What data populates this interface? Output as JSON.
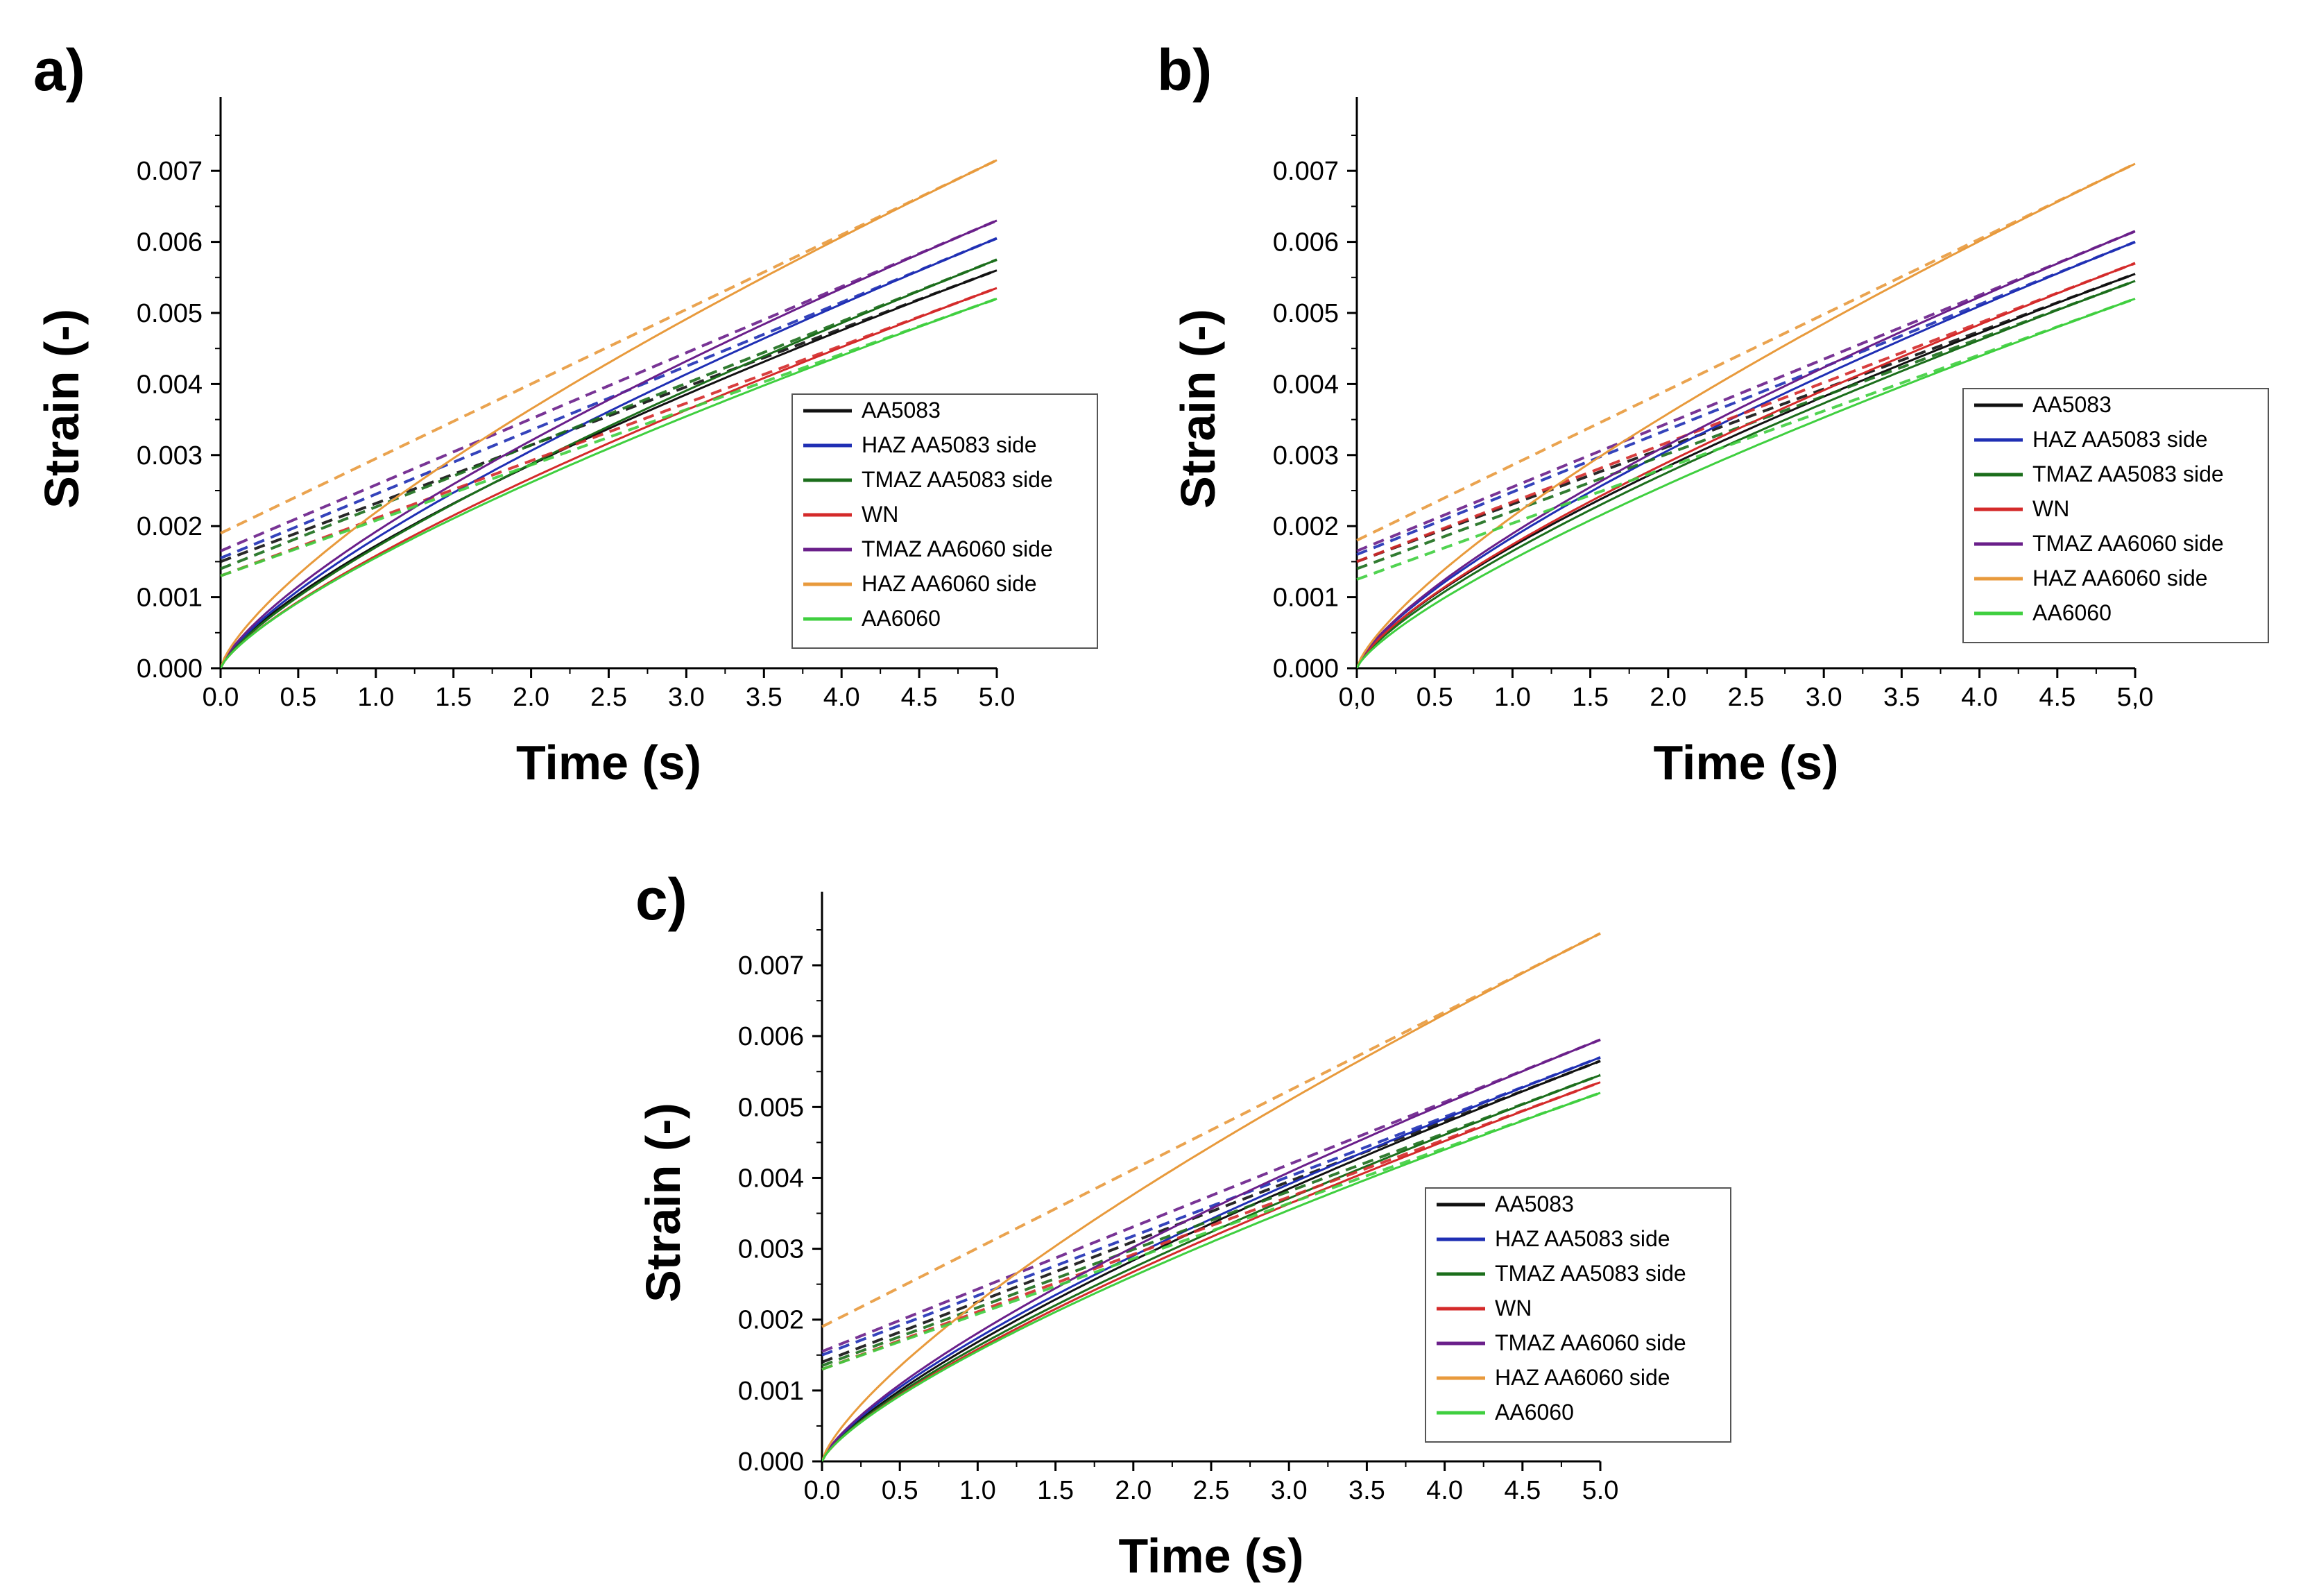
{
  "figure": {
    "panels": [
      "a)",
      "b)",
      "c)"
    ]
  },
  "chart_data": [
    {
      "panel": "a)",
      "type": "line",
      "xlabel": "Time (s)",
      "ylabel": "Strain (-)",
      "xlim": [
        0,
        5
      ],
      "ylim": [
        0,
        0.0075
      ],
      "xticks": [
        "0.0",
        "0.5",
        "1.0",
        "1.5",
        "2.0",
        "2.5",
        "3.0",
        "3.5",
        "4.0",
        "4.5",
        "5.0"
      ],
      "yticks": [
        "0.000",
        "0.001",
        "0.002",
        "0.003",
        "0.004",
        "0.005",
        "0.006",
        "0.007"
      ],
      "legend": {
        "placement": "lower-right"
      },
      "series": [
        {
          "name": "AA5083",
          "color": "#111111",
          "final": 0.0056,
          "fit_intercept": 0.0015
        },
        {
          "name": "HAZ AA5083 side",
          "color": "#1f2fb4",
          "final": 0.00605,
          "fit_intercept": 0.00155
        },
        {
          "name": "TMAZ AA5083 side",
          "color": "#1b6e1b",
          "final": 0.00575,
          "fit_intercept": 0.0014
        },
        {
          "name": "WN",
          "color": "#d42a2a",
          "final": 0.00535,
          "fit_intercept": 0.0013
        },
        {
          "name": "TMAZ AA6060 side",
          "color": "#6a1f8a",
          "final": 0.0063,
          "fit_intercept": 0.00165
        },
        {
          "name": "HAZ AA6060 side",
          "color": "#e89a3c",
          "final": 0.00715,
          "fit_intercept": 0.0019
        },
        {
          "name": "AA6060",
          "color": "#3fcf3f",
          "final": 0.0052,
          "fit_intercept": 0.0013
        }
      ]
    },
    {
      "panel": "b)",
      "type": "line",
      "xlabel": "Time (s)",
      "ylabel": "Strain (-)",
      "xlim": [
        0,
        5
      ],
      "ylim": [
        0,
        0.0075
      ],
      "xticks": [
        "0,0",
        "0.5",
        "1.0",
        "1.5",
        "2.0",
        "2.5",
        "3.0",
        "3.5",
        "4.0",
        "4.5",
        "5,0"
      ],
      "yticks": [
        "0.000",
        "0.001",
        "0.002",
        "0.003",
        "0.004",
        "0.005",
        "0.006",
        "0.007"
      ],
      "legend": {
        "placement": "lower-right"
      },
      "series": [
        {
          "name": "AA5083",
          "color": "#111111",
          "final": 0.00555,
          "fit_intercept": 0.0015
        },
        {
          "name": "HAZ AA5083 side",
          "color": "#1f2fb4",
          "final": 0.006,
          "fit_intercept": 0.0016
        },
        {
          "name": "TMAZ AA5083 side",
          "color": "#1b6e1b",
          "final": 0.00545,
          "fit_intercept": 0.0014
        },
        {
          "name": "WN",
          "color": "#d42a2a",
          "final": 0.0057,
          "fit_intercept": 0.0015
        },
        {
          "name": "TMAZ AA6060 side",
          "color": "#6a1f8a",
          "final": 0.00615,
          "fit_intercept": 0.00165
        },
        {
          "name": "HAZ AA6060 side",
          "color": "#e89a3c",
          "final": 0.0071,
          "fit_intercept": 0.0018
        },
        {
          "name": "AA6060",
          "color": "#3fcf3f",
          "final": 0.0052,
          "fit_intercept": 0.00125
        }
      ]
    },
    {
      "panel": "c)",
      "type": "line",
      "xlabel": "Time (s)",
      "ylabel": "Strain (-)",
      "xlim": [
        0,
        5
      ],
      "ylim": [
        0,
        0.0075
      ],
      "xticks": [
        "0.0",
        "0.5",
        "1.0",
        "1.5",
        "2.0",
        "2.5",
        "3.0",
        "3.5",
        "4.0",
        "4.5",
        "5.0"
      ],
      "yticks": [
        "0.000",
        "0.001",
        "0.002",
        "0.003",
        "0.004",
        "0.005",
        "0.006",
        "0.007"
      ],
      "legend": {
        "placement": "lower-right"
      },
      "series": [
        {
          "name": "AA5083",
          "color": "#111111",
          "final": 0.00565,
          "fit_intercept": 0.0014
        },
        {
          "name": "HAZ AA5083 side",
          "color": "#1f2fb4",
          "final": 0.0057,
          "fit_intercept": 0.0015
        },
        {
          "name": "TMAZ AA5083 side",
          "color": "#1b6e1b",
          "final": 0.00545,
          "fit_intercept": 0.00135
        },
        {
          "name": "WN",
          "color": "#d42a2a",
          "final": 0.00535,
          "fit_intercept": 0.0013
        },
        {
          "name": "TMAZ AA6060 side",
          "color": "#6a1f8a",
          "final": 0.00595,
          "fit_intercept": 0.00155
        },
        {
          "name": "HAZ AA6060 side",
          "color": "#e89a3c",
          "final": 0.00745,
          "fit_intercept": 0.0019
        },
        {
          "name": "AA6060",
          "color": "#3fcf3f",
          "final": 0.0052,
          "fit_intercept": 0.0013
        }
      ]
    }
  ]
}
